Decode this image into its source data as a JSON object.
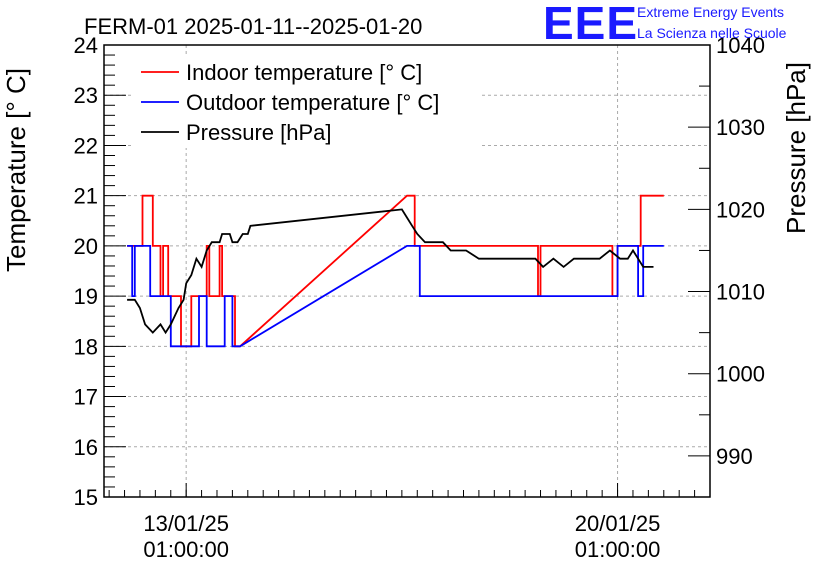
{
  "brand": {
    "logo": "EEE",
    "line1": "Extreme Energy Events",
    "line2": "La Scienza nelle Scuole"
  },
  "chart_data": {
    "type": "line",
    "title": "FERM-01 2025-01-11--2025-01-20",
    "ylabel": "Temperature [° C]",
    "y2label": "Pressure [hPa]",
    "ylim": [
      15,
      24
    ],
    "y2lim": [
      985,
      1040
    ],
    "yticks": [
      15,
      16,
      17,
      18,
      19,
      20,
      21,
      22,
      23,
      24
    ],
    "y2ticks": [
      990,
      1000,
      1010,
      1020,
      1030,
      1040
    ],
    "xlim": [
      "2025-01-11 17:00",
      "2025-01-21 13:00"
    ],
    "xticks": [
      {
        "x": "2025-01-13 01:00",
        "label1": "13/01/25",
        "label2": "01:00:00"
      },
      {
        "x": "2025-01-20 01:00",
        "label1": "20/01/25",
        "label2": "01:00:00"
      }
    ],
    "grid": true,
    "legend_position": "top-left",
    "series": [
      {
        "name": "Indoor temperature [° C]",
        "color": "#ff0000",
        "axis": "left",
        "points": [
          [
            "2025-01-12 02:00",
            20
          ],
          [
            "2025-01-12 08:00",
            20
          ],
          [
            "2025-01-12 08:00",
            21
          ],
          [
            "2025-01-12 12:00",
            21
          ],
          [
            "2025-01-12 12:00",
            20
          ],
          [
            "2025-01-12 15:00",
            20
          ],
          [
            "2025-01-12 15:00",
            19
          ],
          [
            "2025-01-12 16:00",
            19
          ],
          [
            "2025-01-12 16:00",
            20
          ],
          [
            "2025-01-12 18:00",
            20
          ],
          [
            "2025-01-12 18:00",
            19
          ],
          [
            "2025-01-12 23:00",
            19
          ],
          [
            "2025-01-12 23:00",
            18
          ],
          [
            "2025-01-13 03:00",
            18
          ],
          [
            "2025-01-13 03:00",
            19
          ],
          [
            "2025-01-13 09:00",
            19
          ],
          [
            "2025-01-13 09:00",
            20
          ],
          [
            "2025-01-13 10:00",
            20
          ],
          [
            "2025-01-13 10:00",
            19
          ],
          [
            "2025-01-13 14:00",
            19
          ],
          [
            "2025-01-13 14:00",
            20
          ],
          [
            "2025-01-13 15:00",
            20
          ],
          [
            "2025-01-13 15:00",
            19
          ],
          [
            "2025-01-13 20:00",
            19
          ],
          [
            "2025-01-13 20:00",
            18
          ],
          [
            "2025-01-13 22:00",
            18
          ],
          [
            "2025-01-16 15:00",
            21
          ],
          [
            "2025-01-16 18:00",
            21
          ],
          [
            "2025-01-16 18:00",
            20
          ],
          [
            "2025-01-18 18:00",
            20
          ],
          [
            "2025-01-18 18:00",
            19
          ],
          [
            "2025-01-18 19:00",
            19
          ],
          [
            "2025-01-18 19:00",
            20
          ],
          [
            "2025-01-19 23:00",
            20
          ],
          [
            "2025-01-19 23:00",
            19
          ],
          [
            "2025-01-20 01:00",
            19
          ],
          [
            "2025-01-20 01:00",
            20
          ],
          [
            "2025-01-20 10:00",
            20
          ],
          [
            "2025-01-20 10:00",
            21
          ],
          [
            "2025-01-20 19:00",
            21
          ]
        ]
      },
      {
        "name": "Outdoor temperature [° C]",
        "color": "#0000ff",
        "axis": "left",
        "points": [
          [
            "2025-01-12 02:00",
            20
          ],
          [
            "2025-01-12 04:00",
            20
          ],
          [
            "2025-01-12 04:00",
            19
          ],
          [
            "2025-01-12 05:00",
            19
          ],
          [
            "2025-01-12 05:00",
            20
          ],
          [
            "2025-01-12 11:00",
            20
          ],
          [
            "2025-01-12 11:00",
            19
          ],
          [
            "2025-01-12 19:00",
            19
          ],
          [
            "2025-01-12 19:00",
            18
          ],
          [
            "2025-01-13 06:00",
            18
          ],
          [
            "2025-01-13 06:00",
            19
          ],
          [
            "2025-01-13 09:00",
            19
          ],
          [
            "2025-01-13 09:00",
            18
          ],
          [
            "2025-01-13 16:00",
            18
          ],
          [
            "2025-01-13 16:00",
            19
          ],
          [
            "2025-01-13 19:00",
            19
          ],
          [
            "2025-01-13 19:00",
            18
          ],
          [
            "2025-01-13 22:00",
            18
          ],
          [
            "2025-01-16 15:00",
            20
          ],
          [
            "2025-01-16 20:00",
            20
          ],
          [
            "2025-01-16 20:00",
            19
          ],
          [
            "2025-01-20 01:00",
            19
          ],
          [
            "2025-01-20 01:00",
            20
          ],
          [
            "2025-01-20 09:00",
            20
          ],
          [
            "2025-01-20 09:00",
            19
          ],
          [
            "2025-01-20 11:00",
            19
          ],
          [
            "2025-01-20 11:00",
            20
          ],
          [
            "2025-01-20 19:00",
            20
          ]
        ]
      },
      {
        "name": "Pressure [hPa]",
        "color": "#000000",
        "axis": "right",
        "points": [
          [
            "2025-01-12 02:00",
            1009
          ],
          [
            "2025-01-12 05:00",
            1009
          ],
          [
            "2025-01-12 07:00",
            1008
          ],
          [
            "2025-01-12 09:00",
            1006
          ],
          [
            "2025-01-12 12:00",
            1005
          ],
          [
            "2025-01-12 15:00",
            1006
          ],
          [
            "2025-01-12 17:00",
            1005
          ],
          [
            "2025-01-12 19:00",
            1006
          ],
          [
            "2025-01-12 22:00",
            1008
          ],
          [
            "2025-01-13 00:00",
            1009
          ],
          [
            "2025-01-13 01:00",
            1011
          ],
          [
            "2025-01-13 03:00",
            1012
          ],
          [
            "2025-01-13 05:00",
            1014
          ],
          [
            "2025-01-13 07:00",
            1013
          ],
          [
            "2025-01-13 09:00",
            1015
          ],
          [
            "2025-01-13 11:00",
            1016
          ],
          [
            "2025-01-13 14:00",
            1016
          ],
          [
            "2025-01-13 15:00",
            1017
          ],
          [
            "2025-01-13 18:00",
            1017
          ],
          [
            "2025-01-13 19:00",
            1016
          ],
          [
            "2025-01-13 21:00",
            1016
          ],
          [
            "2025-01-13 23:00",
            1017
          ],
          [
            "2025-01-14 01:00",
            1017
          ],
          [
            "2025-01-14 02:00",
            1018
          ],
          [
            "2025-01-16 13:00",
            1020
          ],
          [
            "2025-01-16 15:00",
            1019
          ],
          [
            "2025-01-16 17:00",
            1018
          ],
          [
            "2025-01-16 19:00",
            1017
          ],
          [
            "2025-01-16 22:00",
            1016
          ],
          [
            "2025-01-17 02:00",
            1016
          ],
          [
            "2025-01-17 05:00",
            1016
          ],
          [
            "2025-01-17 08:00",
            1015
          ],
          [
            "2025-01-17 14:00",
            1015
          ],
          [
            "2025-01-17 19:00",
            1014
          ],
          [
            "2025-01-18 03:00",
            1014
          ],
          [
            "2025-01-18 10:00",
            1014
          ],
          [
            "2025-01-18 17:00",
            1014
          ],
          [
            "2025-01-18 20:00",
            1013
          ],
          [
            "2025-01-19 00:00",
            1014
          ],
          [
            "2025-01-19 04:00",
            1013
          ],
          [
            "2025-01-19 08:00",
            1014
          ],
          [
            "2025-01-19 14:00",
            1014
          ],
          [
            "2025-01-19 18:00",
            1014
          ],
          [
            "2025-01-19 22:00",
            1015
          ],
          [
            "2025-01-20 02:00",
            1014
          ],
          [
            "2025-01-20 05:00",
            1014
          ],
          [
            "2025-01-20 07:00",
            1015
          ],
          [
            "2025-01-20 09:00",
            1014
          ],
          [
            "2025-01-20 11:00",
            1013
          ],
          [
            "2025-01-20 15:00",
            1013
          ]
        ]
      }
    ]
  }
}
